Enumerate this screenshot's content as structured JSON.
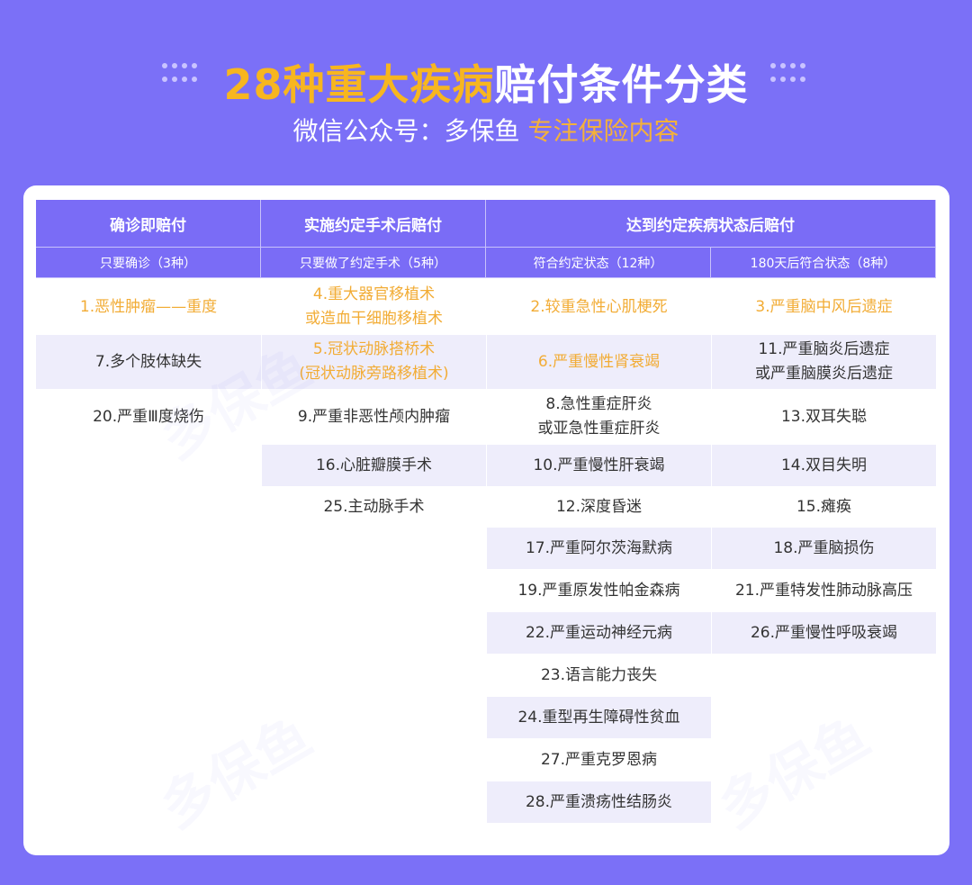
{
  "header": {
    "title_highlight": "28种重大疾病",
    "title_rest": "赔付条件分类",
    "subtitle_prefix": "微信公众号：多保鱼",
    "subtitle_highlight": "专注保险内容"
  },
  "watermark": "多保鱼",
  "colors": {
    "background": "#7b70f7",
    "header": "#7a6cf6",
    "highlight": "#f2ac35",
    "stripe": "#eeedfb"
  },
  "table": {
    "groups": [
      "确诊即赔付",
      "实施约定手术后赔付",
      "达到约定疾病状态后赔付"
    ],
    "subheaders": [
      "只要确诊（3种）",
      "只要做了约定手术（5种）",
      "符合约定状态（12种）",
      "180天后符合状态（8种）"
    ],
    "columns": [
      [
        {
          "text": "1.恶性肿瘤——重度",
          "highlight": true
        },
        {
          "text": "7.多个肢体缺失",
          "highlight": false
        },
        {
          "text": "20.严重Ⅲ度烧伤",
          "highlight": false
        }
      ],
      [
        {
          "text": "4.重大器官移植术\n或造血干细胞移植术",
          "highlight": true
        },
        {
          "text": "5.冠状动脉搭桥术\n(冠状动脉旁路移植术)",
          "highlight": true
        },
        {
          "text": "9.严重非恶性颅内肿瘤",
          "highlight": false
        },
        {
          "text": "16.心脏瓣膜手术",
          "highlight": false
        },
        {
          "text": "25.主动脉手术",
          "highlight": false
        }
      ],
      [
        {
          "text": "2.较重急性心肌梗死",
          "highlight": true
        },
        {
          "text": "6.严重慢性肾衰竭",
          "highlight": true
        },
        {
          "text": "8.急性重症肝炎\n或亚急性重症肝炎",
          "highlight": false
        },
        {
          "text": "10.严重慢性肝衰竭",
          "highlight": false
        },
        {
          "text": "12.深度昏迷",
          "highlight": false
        },
        {
          "text": "17.严重阿尔茨海默病",
          "highlight": false
        },
        {
          "text": "19.严重原发性帕金森病",
          "highlight": false
        },
        {
          "text": "22.严重运动神经元病",
          "highlight": false
        },
        {
          "text": "23.语言能力丧失",
          "highlight": false
        },
        {
          "text": "24.重型再生障碍性贫血",
          "highlight": false
        },
        {
          "text": "27.严重克罗恩病",
          "highlight": false
        },
        {
          "text": "28.严重溃疡性结肠炎",
          "highlight": false
        }
      ],
      [
        {
          "text": "3.严重脑中风后遗症",
          "highlight": true
        },
        {
          "text": "11.严重脑炎后遗症\n或严重脑膜炎后遗症",
          "highlight": false
        },
        {
          "text": "13.双耳失聪",
          "highlight": false
        },
        {
          "text": "14.双目失明",
          "highlight": false
        },
        {
          "text": "15.瘫痪",
          "highlight": false
        },
        {
          "text": "18.严重脑损伤",
          "highlight": false
        },
        {
          "text": "21.严重特发性肺动脉高压",
          "highlight": false
        },
        {
          "text": "26.严重慢性呼吸衰竭",
          "highlight": false
        }
      ]
    ]
  }
}
